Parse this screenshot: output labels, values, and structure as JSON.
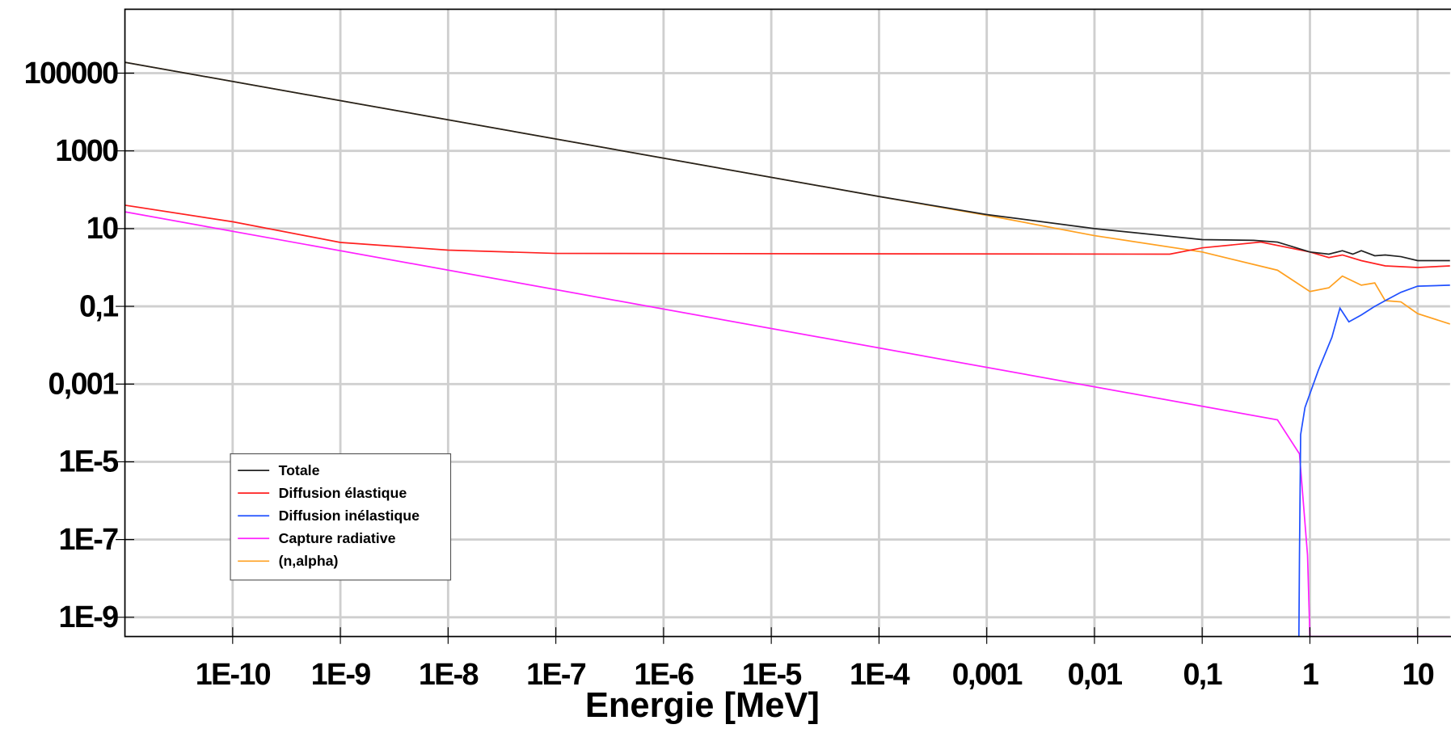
{
  "chart_data": {
    "type": "line",
    "xlabel": "Energie [MeV]",
    "xscale": "log",
    "yscale": "log",
    "grid": true,
    "legend": "lower left",
    "xlim": [
      1e-11,
      20
    ],
    "ylim": [
      3.2e-10,
      4400000.0
    ],
    "xticks": [
      {
        "value": 1e-10,
        "label": "1E-10"
      },
      {
        "value": 1e-09,
        "label": "1E-9"
      },
      {
        "value": 1e-08,
        "label": "1E-8"
      },
      {
        "value": 1e-07,
        "label": "1E-7"
      },
      {
        "value": 1e-06,
        "label": "1E-6"
      },
      {
        "value": 1e-05,
        "label": "1E-5"
      },
      {
        "value": 0.0001,
        "label": "1E-4"
      },
      {
        "value": 0.001,
        "label": "0,001"
      },
      {
        "value": 0.01,
        "label": "0,01"
      },
      {
        "value": 0.1,
        "label": "0,1"
      },
      1,
      10
    ],
    "yticks": [
      100000,
      1000,
      10,
      {
        "value": 0.1,
        "label": "0,1"
      },
      {
        "value": 0.001,
        "label": "0,001"
      },
      {
        "value": 1e-05,
        "label": "1E-5"
      },
      {
        "value": 1e-07,
        "label": "1E-7"
      },
      {
        "value": 1e-09,
        "label": "1E-9"
      }
    ],
    "series": [
      {
        "name": "Totale",
        "color": "#222222",
        "x": [
          1e-11,
          0.0001,
          0.001,
          0.01,
          0.1,
          0.3,
          0.5,
          1,
          1.5,
          2,
          2.5,
          3,
          4,
          5,
          7,
          10,
          20
        ],
        "values": [
          190000,
          67,
          23,
          10,
          5.2,
          5,
          4.5,
          2.5,
          2.2,
          2.7,
          2.2,
          2.7,
          2.0,
          2.1,
          1.9,
          1.5,
          1.5
        ]
      },
      {
        "name": "Diffusion élastique",
        "color": "#ff2020",
        "x": [
          1e-11,
          1e-10,
          1e-09,
          1e-08,
          1e-07,
          0.05,
          0.1,
          0.35,
          1,
          1.5,
          2,
          3,
          5,
          10,
          20
        ],
        "values": [
          40,
          15,
          4.4,
          2.8,
          2.3,
          2.2,
          3.2,
          4.5,
          2.5,
          1.8,
          2.1,
          1.5,
          1.1,
          1.0,
          1.1
        ]
      },
      {
        "name": "Diffusion inélastique",
        "color": "#2050ff",
        "x": [
          0.79,
          0.8,
          0.82,
          0.9,
          1.2,
          1.6,
          1.9,
          2.3,
          3,
          4,
          5,
          7,
          10,
          20
        ],
        "values": [
          3.2e-10,
          4e-08,
          5e-05,
          0.00025,
          0.0023,
          0.016,
          0.09,
          0.04,
          0.06,
          0.1,
          0.14,
          0.23,
          0.33,
          0.35
        ]
      },
      {
        "name": "Capture radiative",
        "color": "#ff20ff",
        "x": [
          1e-11,
          0.5,
          0.8,
          0.95,
          1,
          20
        ],
        "values": [
          27,
          0.00012,
          1.6e-05,
          4e-08,
          3.2e-10,
          3.2e-10
        ]
      },
      {
        "name": "(n,alpha)",
        "color": "#ffa020",
        "x": [
          1e-11,
          0.0001,
          0.001,
          0.01,
          0.1,
          0.5,
          1,
          1.5,
          2,
          3,
          4,
          5,
          7,
          10,
          20
        ],
        "values": [
          190000,
          67,
          22,
          6.6,
          2.5,
          0.85,
          0.24,
          0.3,
          0.6,
          0.35,
          0.4,
          0.14,
          0.13,
          0.065,
          0.035
        ]
      }
    ]
  }
}
